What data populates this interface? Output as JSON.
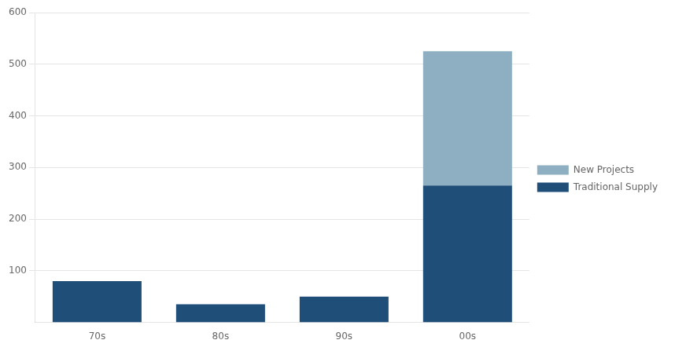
{
  "chart_data": {
    "type": "bar",
    "stacked": true,
    "categories": [
      "70s",
      "80s",
      "90s",
      "00s"
    ],
    "series": [
      {
        "name": "Traditional Supply",
        "color": "#1f4e79",
        "values": [
          80,
          35,
          50,
          265
        ]
      },
      {
        "name": "New Projects",
        "color": "#8eafc2",
        "values": [
          0,
          0,
          0,
          260
        ]
      }
    ],
    "ylim": [
      0,
      600
    ],
    "yticks": [
      100,
      200,
      300,
      400,
      500,
      600
    ],
    "grid": true,
    "legend": "right"
  }
}
